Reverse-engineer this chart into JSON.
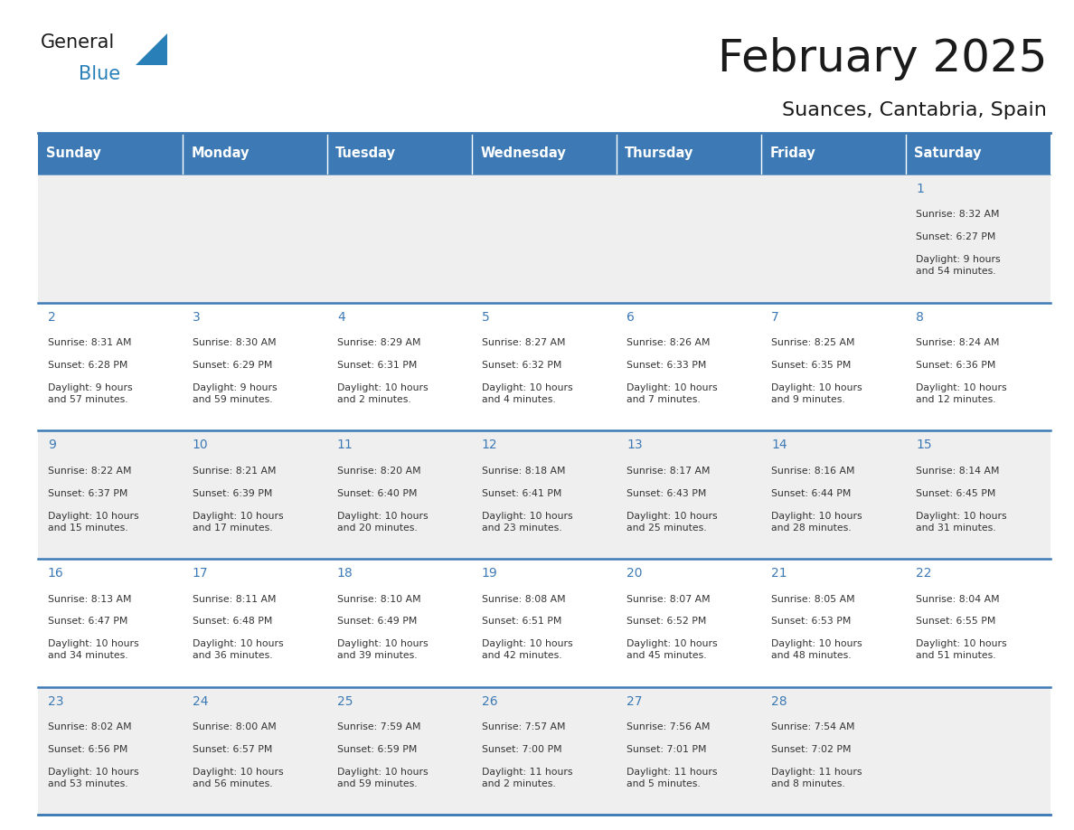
{
  "title": "February 2025",
  "subtitle": "Suances, Cantabria, Spain",
  "header_bg": "#3d7ab5",
  "header_text_color": "#ffffff",
  "cell_bg_odd": "#efefef",
  "cell_bg_even": "#ffffff",
  "border_color": "#3d7ab5",
  "day_headers": [
    "Sunday",
    "Monday",
    "Tuesday",
    "Wednesday",
    "Thursday",
    "Friday",
    "Saturday"
  ],
  "title_color": "#1a1a1a",
  "subtitle_color": "#1a1a1a",
  "day_number_color": "#3d7ab5",
  "cell_text_color": "#333333",
  "calendar_data": [
    [
      null,
      null,
      null,
      null,
      null,
      null,
      {
        "day": 1,
        "sunrise": "8:32 AM",
        "sunset": "6:27 PM",
        "daylight": "9 hours\nand 54 minutes."
      }
    ],
    [
      {
        "day": 2,
        "sunrise": "8:31 AM",
        "sunset": "6:28 PM",
        "daylight": "9 hours\nand 57 minutes."
      },
      {
        "day": 3,
        "sunrise": "8:30 AM",
        "sunset": "6:29 PM",
        "daylight": "9 hours\nand 59 minutes."
      },
      {
        "day": 4,
        "sunrise": "8:29 AM",
        "sunset": "6:31 PM",
        "daylight": "10 hours\nand 2 minutes."
      },
      {
        "day": 5,
        "sunrise": "8:27 AM",
        "sunset": "6:32 PM",
        "daylight": "10 hours\nand 4 minutes."
      },
      {
        "day": 6,
        "sunrise": "8:26 AM",
        "sunset": "6:33 PM",
        "daylight": "10 hours\nand 7 minutes."
      },
      {
        "day": 7,
        "sunrise": "8:25 AM",
        "sunset": "6:35 PM",
        "daylight": "10 hours\nand 9 minutes."
      },
      {
        "day": 8,
        "sunrise": "8:24 AM",
        "sunset": "6:36 PM",
        "daylight": "10 hours\nand 12 minutes."
      }
    ],
    [
      {
        "day": 9,
        "sunrise": "8:22 AM",
        "sunset": "6:37 PM",
        "daylight": "10 hours\nand 15 minutes."
      },
      {
        "day": 10,
        "sunrise": "8:21 AM",
        "sunset": "6:39 PM",
        "daylight": "10 hours\nand 17 minutes."
      },
      {
        "day": 11,
        "sunrise": "8:20 AM",
        "sunset": "6:40 PM",
        "daylight": "10 hours\nand 20 minutes."
      },
      {
        "day": 12,
        "sunrise": "8:18 AM",
        "sunset": "6:41 PM",
        "daylight": "10 hours\nand 23 minutes."
      },
      {
        "day": 13,
        "sunrise": "8:17 AM",
        "sunset": "6:43 PM",
        "daylight": "10 hours\nand 25 minutes."
      },
      {
        "day": 14,
        "sunrise": "8:16 AM",
        "sunset": "6:44 PM",
        "daylight": "10 hours\nand 28 minutes."
      },
      {
        "day": 15,
        "sunrise": "8:14 AM",
        "sunset": "6:45 PM",
        "daylight": "10 hours\nand 31 minutes."
      }
    ],
    [
      {
        "day": 16,
        "sunrise": "8:13 AM",
        "sunset": "6:47 PM",
        "daylight": "10 hours\nand 34 minutes."
      },
      {
        "day": 17,
        "sunrise": "8:11 AM",
        "sunset": "6:48 PM",
        "daylight": "10 hours\nand 36 minutes."
      },
      {
        "day": 18,
        "sunrise": "8:10 AM",
        "sunset": "6:49 PM",
        "daylight": "10 hours\nand 39 minutes."
      },
      {
        "day": 19,
        "sunrise": "8:08 AM",
        "sunset": "6:51 PM",
        "daylight": "10 hours\nand 42 minutes."
      },
      {
        "day": 20,
        "sunrise": "8:07 AM",
        "sunset": "6:52 PM",
        "daylight": "10 hours\nand 45 minutes."
      },
      {
        "day": 21,
        "sunrise": "8:05 AM",
        "sunset": "6:53 PM",
        "daylight": "10 hours\nand 48 minutes."
      },
      {
        "day": 22,
        "sunrise": "8:04 AM",
        "sunset": "6:55 PM",
        "daylight": "10 hours\nand 51 minutes."
      }
    ],
    [
      {
        "day": 23,
        "sunrise": "8:02 AM",
        "sunset": "6:56 PM",
        "daylight": "10 hours\nand 53 minutes."
      },
      {
        "day": 24,
        "sunrise": "8:00 AM",
        "sunset": "6:57 PM",
        "daylight": "10 hours\nand 56 minutes."
      },
      {
        "day": 25,
        "sunrise": "7:59 AM",
        "sunset": "6:59 PM",
        "daylight": "10 hours\nand 59 minutes."
      },
      {
        "day": 26,
        "sunrise": "7:57 AM",
        "sunset": "7:00 PM",
        "daylight": "11 hours\nand 2 minutes."
      },
      {
        "day": 27,
        "sunrise": "7:56 AM",
        "sunset": "7:01 PM",
        "daylight": "11 hours\nand 5 minutes."
      },
      {
        "day": 28,
        "sunrise": "7:54 AM",
        "sunset": "7:02 PM",
        "daylight": "11 hours\nand 8 minutes."
      },
      null
    ]
  ],
  "logo_text_general": "General",
  "logo_text_blue": "Blue",
  "logo_color_general": "#1a1a1a",
  "logo_color_blue": "#2980b9",
  "logo_triangle_color": "#2980b9",
  "figsize": [
    11.88,
    9.18
  ],
  "dpi": 100
}
